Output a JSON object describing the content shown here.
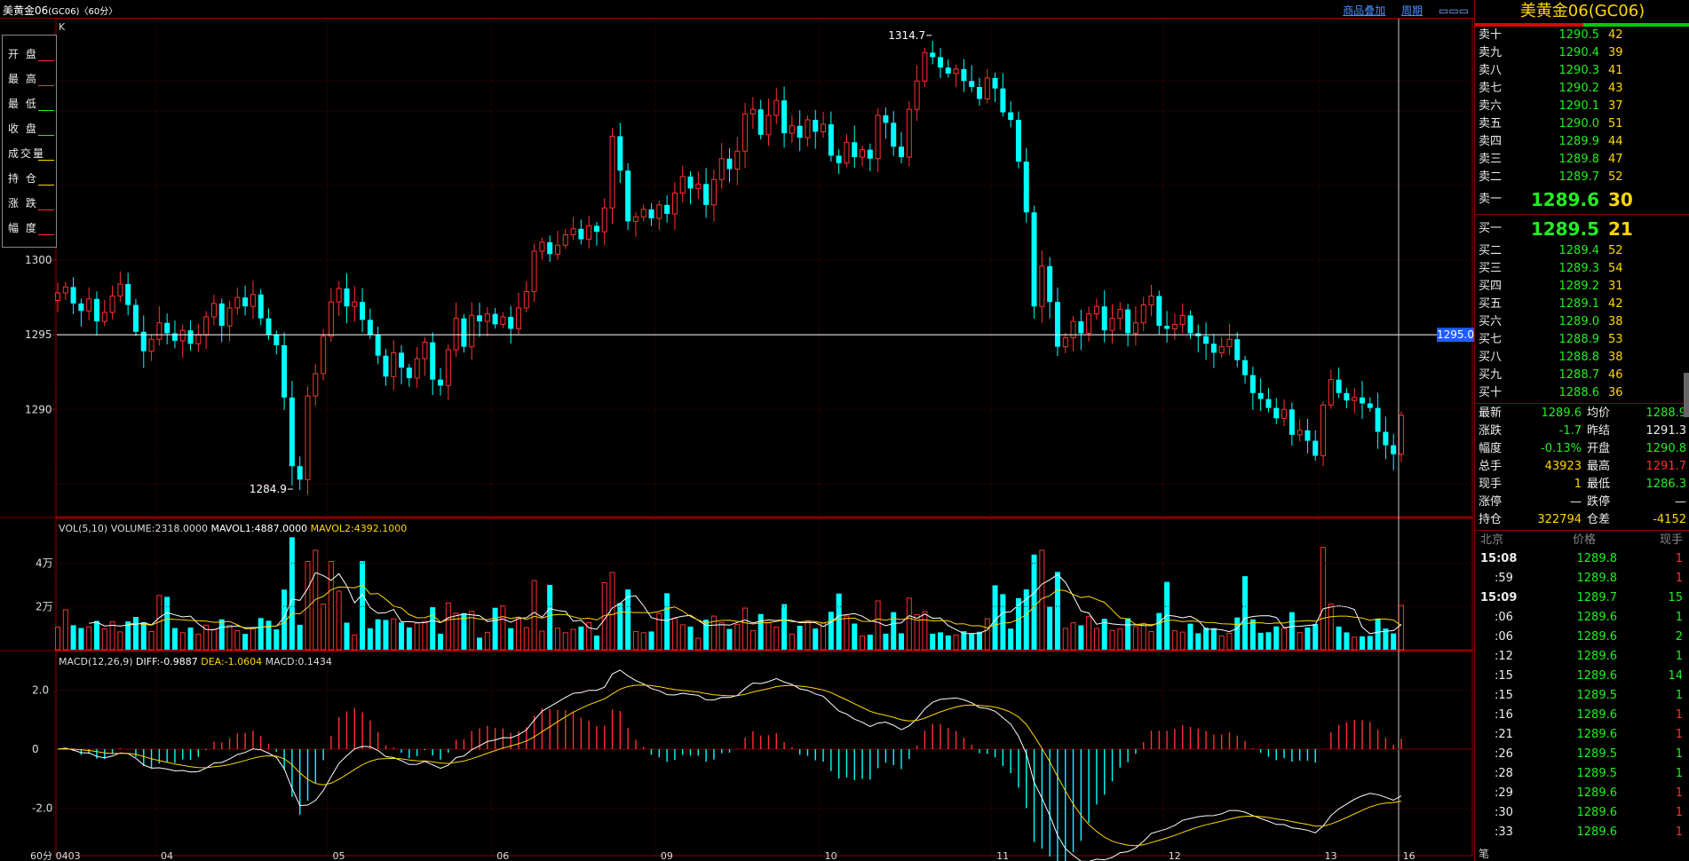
{
  "window": {
    "title": "美黄金06",
    "code": "(GC06)",
    "period": "〈60分〉"
  },
  "toolbar": {
    "overlay_label": "商品叠加",
    "period_label": "周期"
  },
  "chart": {
    "k_label": "K",
    "crosshair_price": "1295.0",
    "high_annotation": "1314.7",
    "low_annotation": "1284.9",
    "ohlc_labels": [
      "开 盘",
      "最 高",
      "最 低",
      "收 盘",
      "成交量",
      "持 仓",
      "涨 跌",
      "幅 度"
    ],
    "price_ticks": [
      "1300",
      "1295",
      "1290"
    ],
    "vol_ticks": [
      "4万",
      "2万"
    ],
    "macd_ticks": [
      "2.0",
      "0",
      "-2.0"
    ],
    "x_ticks": [
      "0403",
      "04",
      "05",
      "06",
      "09",
      "10",
      "11",
      "12",
      "13",
      "16"
    ],
    "period_label": "60分",
    "vol_header": {
      "prefix": "VOL(5,10) VOLUME:2318.0000 ",
      "mavol1": "MAVOL1:4887.0000",
      "mavol2": "MAVOL2:4392.1000"
    },
    "macd_header": {
      "prefix": "MACD(12,26,9) ",
      "diff": "DIFF:-0.9887",
      "dea": "DEA:-1.0604",
      "macd": "MACD:0.1434"
    },
    "colors": {
      "up": "#ff3030",
      "down": "#00ffff",
      "ma1": "#ffffff",
      "ma2": "#ffd700"
    }
  },
  "chart_data": {
    "type": "candlestick",
    "price_range": [
      1283,
      1316
    ],
    "start": 1297.3,
    "path": [
      1297.8,
      1298.2,
      1297.1,
      1296.6,
      1297.4,
      1295.9,
      1296.5,
      1297.6,
      1298.4,
      1297.0,
      1295.2,
      1293.9,
      1294.7,
      1295.8,
      1295.1,
      1294.6,
      1295.3,
      1294.4,
      1295.0,
      1296.2,
      1297.1,
      1295.6,
      1296.8,
      1297.5,
      1296.9,
      1297.7,
      1296.1,
      1295.0,
      1294.3,
      1290.8,
      1286.2,
      1285.3,
      1290.9,
      1292.4,
      1294.9,
      1297.2,
      1298.1,
      1296.9,
      1297.2,
      1296.0,
      1295.0,
      1293.6,
      1292.2,
      1293.8,
      1292.8,
      1292.1,
      1293.4,
      1294.5,
      1292.0,
      1291.6,
      1294.0,
      1296.1,
      1294.2,
      1296.3,
      1295.9,
      1296.4,
      1295.7,
      1296.2,
      1295.4,
      1296.8,
      1297.9,
      1300.6,
      1301.2,
      1300.4,
      1301.0,
      1301.7,
      1302.1,
      1301.4,
      1302.3,
      1301.9,
      1303.5,
      1308.3,
      1306.0,
      1302.6,
      1302.9,
      1303.4,
      1302.8,
      1303.7,
      1303.1,
      1304.5,
      1305.6,
      1304.8,
      1305.1,
      1303.7,
      1305.4,
      1306.8,
      1306.1,
      1307.3,
      1309.8,
      1310.1,
      1308.4,
      1309.7,
      1310.7,
      1308.5,
      1309.0,
      1308.2,
      1309.4,
      1308.6,
      1309.1,
      1307.0,
      1306.5,
      1307.9,
      1306.9,
      1307.4,
      1306.8,
      1309.7,
      1309.2,
      1307.6,
      1306.9,
      1310.1,
      1312.0,
      1313.9,
      1313.6,
      1312.9,
      1312.5,
      1312.8,
      1312.0,
      1311.6,
      1310.8,
      1312.2,
      1311.5,
      1309.9,
      1309.4,
      1306.6,
      1303.2,
      1296.9,
      1299.6,
      1297.2,
      1294.2,
      1294.8,
      1295.9,
      1295.1,
      1296.4,
      1296.9,
      1295.3,
      1296.1,
      1296.7,
      1295.1,
      1295.8,
      1297.0,
      1297.6,
      1295.6,
      1295.4,
      1295.7,
      1296.3,
      1295.1,
      1294.9,
      1294.4,
      1293.8,
      1294.2,
      1294.7,
      1293.3,
      1292.3,
      1291.1,
      1290.7,
      1290.1,
      1289.4,
      1290.0,
      1288.3,
      1288.6,
      1287.9,
      1286.9,
      1290.3,
      1292.0,
      1291.1,
      1290.6,
      1290.8,
      1290.4,
      1290.1,
      1288.5,
      1287.6,
      1287.0,
      1289.6
    ],
    "high_label": {
      "text": "1314.7",
      "value": 1314.7
    },
    "low_label": {
      "text": "1284.9",
      "value": 1284.9
    },
    "volume_range": [
      0,
      55000
    ],
    "macd_range": [
      -3.6,
      2.7
    ]
  },
  "quote": {
    "title": "美黄金06(GC06)",
    "asks": [
      {
        "label": "卖十",
        "price": "1290.5",
        "vol": "42"
      },
      {
        "label": "卖九",
        "price": "1290.4",
        "vol": "39"
      },
      {
        "label": "卖八",
        "price": "1290.3",
        "vol": "41"
      },
      {
        "label": "卖七",
        "price": "1290.2",
        "vol": "43"
      },
      {
        "label": "卖六",
        "price": "1290.1",
        "vol": "37"
      },
      {
        "label": "卖五",
        "price": "1290.0",
        "vol": "51"
      },
      {
        "label": "卖四",
        "price": "1289.9",
        "vol": "44"
      },
      {
        "label": "卖三",
        "price": "1289.8",
        "vol": "47"
      },
      {
        "label": "卖二",
        "price": "1289.7",
        "vol": "52"
      }
    ],
    "ask1": {
      "label": "卖一",
      "price": "1289.6",
      "vol": "30"
    },
    "bid1": {
      "label": "买一",
      "price": "1289.5",
      "vol": "21"
    },
    "bids": [
      {
        "label": "买二",
        "price": "1289.4",
        "vol": "52"
      },
      {
        "label": "买三",
        "price": "1289.3",
        "vol": "54"
      },
      {
        "label": "买四",
        "price": "1289.2",
        "vol": "31"
      },
      {
        "label": "买五",
        "price": "1289.1",
        "vol": "42"
      },
      {
        "label": "买六",
        "price": "1289.0",
        "vol": "38"
      },
      {
        "label": "买七",
        "price": "1288.9",
        "vol": "53"
      },
      {
        "label": "买八",
        "price": "1288.8",
        "vol": "38"
      },
      {
        "label": "买九",
        "price": "1288.7",
        "vol": "46"
      },
      {
        "label": "买十",
        "price": "1288.6",
        "vol": "36"
      }
    ],
    "stats": [
      {
        "l1": "最新",
        "v1": "1289.6",
        "c1": "#22ee22",
        "l2": "均价",
        "v2": "1288.9",
        "c2": "#22ee22"
      },
      {
        "l1": "涨跌",
        "v1": "-1.7",
        "c1": "#22ee22",
        "l2": "昨结",
        "v2": "1291.3",
        "c2": "#eeeeee"
      },
      {
        "l1": "幅度",
        "v1": "-0.13%",
        "c1": "#22ee22",
        "l2": "开盘",
        "v2": "1290.8",
        "c2": "#22ee22"
      },
      {
        "l1": "总手",
        "v1": "43923",
        "c1": "#ffd700",
        "l2": "最高",
        "v2": "1291.7",
        "c2": "#ff3030"
      },
      {
        "l1": "现手",
        "v1": "1",
        "c1": "#ffd700",
        "l2": "最低",
        "v2": "1286.3",
        "c2": "#22ee22"
      },
      {
        "l1": "涨停",
        "v1": "—",
        "c1": "#eeeeee",
        "l2": "跌停",
        "v2": "—",
        "c2": "#eeeeee"
      },
      {
        "l1": "持仓",
        "v1": "322794",
        "c1": "#ffd700",
        "l2": "仓差",
        "v2": "-4152",
        "c2": "#ffd700"
      }
    ],
    "ticks_header": {
      "time": "北京",
      "price": "价格",
      "vol": "现手"
    },
    "ticks": [
      {
        "time": "15:08",
        "price": "1289.8",
        "vol": "1",
        "vc": "#ff3030",
        "bold": true
      },
      {
        "time": ":59",
        "price": "1289.8",
        "vol": "1",
        "vc": "#ff3030"
      },
      {
        "time": "15:09",
        "price": "1289.7",
        "vol": "15",
        "vc": "#22ee22",
        "bold": true
      },
      {
        "time": ":06",
        "price": "1289.6",
        "vol": "1",
        "vc": "#22ee22"
      },
      {
        "time": ":06",
        "price": "1289.6",
        "vol": "2",
        "vc": "#22ee22"
      },
      {
        "time": ":12",
        "price": "1289.6",
        "vol": "1",
        "vc": "#22ee22"
      },
      {
        "time": ":15",
        "price": "1289.6",
        "vol": "14",
        "vc": "#22ee22"
      },
      {
        "time": ":15",
        "price": "1289.5",
        "vol": "1",
        "vc": "#22ee22"
      },
      {
        "time": ":16",
        "price": "1289.6",
        "vol": "1",
        "vc": "#ff3030"
      },
      {
        "time": ":21",
        "price": "1289.6",
        "vol": "1",
        "vc": "#ff3030"
      },
      {
        "time": ":26",
        "price": "1289.5",
        "vol": "1",
        "vc": "#22ee22"
      },
      {
        "time": ":28",
        "price": "1289.5",
        "vol": "1",
        "vc": "#22ee22"
      },
      {
        "time": ":29",
        "price": "1289.6",
        "vol": "1",
        "vc": "#ff3030"
      },
      {
        "time": ":30",
        "price": "1289.6",
        "vol": "1",
        "vc": "#ff3030"
      },
      {
        "time": ":33",
        "price": "1289.6",
        "vol": "1",
        "vc": "#ff3030"
      }
    ],
    "footer_tab": "笔"
  }
}
